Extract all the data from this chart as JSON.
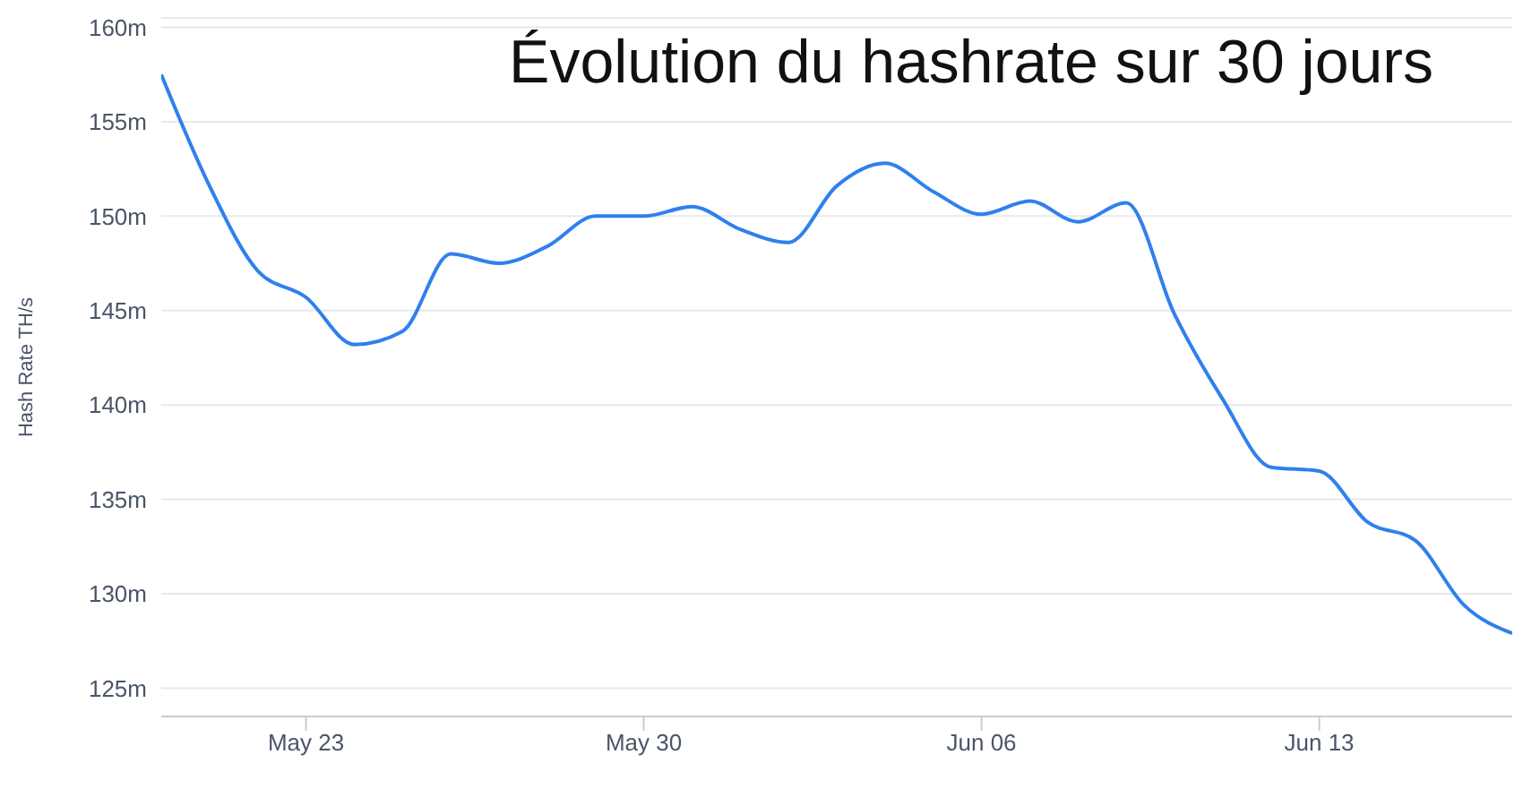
{
  "chart_data": {
    "type": "line",
    "title": "Évolution du hashrate sur 30 jours",
    "ylabel": "Hash Rate TH/s",
    "x": [
      "--05-20",
      "--05-21",
      "--05-22",
      "--05-23",
      "--05-24",
      "--05-25",
      "--05-26",
      "--05-27",
      "--05-28",
      "--05-29",
      "--05-30",
      "--05-31",
      "--06-01",
      "--06-02",
      "--06-03",
      "--06-04",
      "--06-05",
      "--06-06",
      "--06-07",
      "--06-08",
      "--06-09",
      "--06-10",
      "--06-11",
      "--06-12",
      "--06-13",
      "--06-14",
      "--06-15",
      "--06-16",
      "--06-17"
    ],
    "series": [
      {
        "color": "#2f80ed",
        "values": [
          157.5,
          151.6,
          147.1,
          145.7,
          143.2,
          143.9,
          148.0,
          147.5,
          148.4,
          150.0,
          150.0,
          150.5,
          149.3,
          148.6,
          151.6,
          152.8,
          151.3,
          150.1,
          150.8,
          149.7,
          150.7,
          144.8,
          140.3,
          136.7,
          136.5,
          133.8,
          132.8,
          129.4,
          127.9
        ]
      }
    ],
    "xlim": [
      "--05-20",
      "--06-17"
    ],
    "xticks": [
      {
        "value": "--05-23",
        "label": "May 23"
      },
      {
        "value": "--05-30",
        "label": "May 30"
      },
      {
        "value": "--06-06",
        "label": "Jun 06"
      },
      {
        "value": "--06-13",
        "label": "Jun 13"
      }
    ],
    "ylim": [
      123.5,
      160.5
    ],
    "yticks": [
      {
        "value": 125,
        "label": "125m"
      },
      {
        "value": 130,
        "label": "130m"
      },
      {
        "value": 135,
        "label": "135m"
      },
      {
        "value": 140,
        "label": "140m"
      },
      {
        "value": 145,
        "label": "145m"
      },
      {
        "value": 150,
        "label": "150m"
      },
      {
        "value": 155,
        "label": "155m"
      },
      {
        "value": 160,
        "label": "160m"
      }
    ],
    "grid": "y",
    "marker": "none",
    "line_style": "solid"
  }
}
